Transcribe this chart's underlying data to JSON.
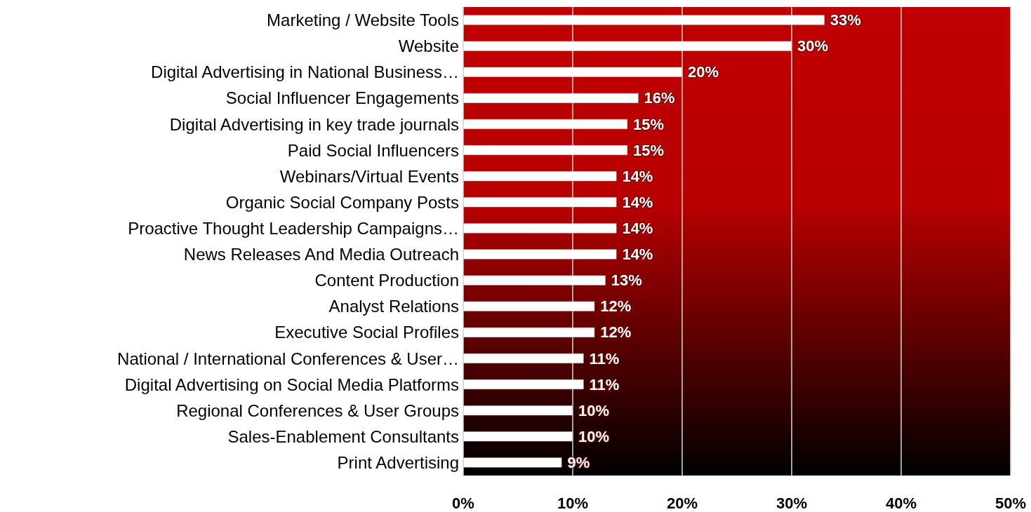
{
  "chart_data": {
    "type": "bar",
    "orientation": "horizontal",
    "categories": [
      "Marketing / Website Tools",
      "Website",
      "Digital Advertising in National Business…",
      "Social Influencer Engagements",
      "Digital Advertising in key trade journals",
      "Paid Social Influencers",
      "Webinars/Virtual Events",
      "Organic Social Company Posts",
      "Proactive Thought Leadership Campaigns…",
      "News Releases And Media Outreach",
      "Content Production",
      "Analyst Relations",
      "Executive Social Profiles",
      "National / International Conferences & User…",
      "Digital Advertising on Social Media Platforms",
      "Regional Conferences & User Groups",
      "Sales-Enablement Consultants",
      "Print Advertising"
    ],
    "values": [
      33,
      30,
      20,
      16,
      15,
      15,
      14,
      14,
      14,
      14,
      13,
      12,
      12,
      11,
      11,
      10,
      10,
      9
    ],
    "value_labels": [
      "33%",
      "30%",
      "20%",
      "16%",
      "15%",
      "15%",
      "14%",
      "14%",
      "14%",
      "14%",
      "13%",
      "12%",
      "12%",
      "11%",
      "11%",
      "10%",
      "10%",
      "9%"
    ],
    "color": "#ffffff",
    "xlim": [
      0,
      50
    ],
    "xticks": [
      {
        "value": 0,
        "label": "0%"
      },
      {
        "value": 10,
        "label": "10%"
      },
      {
        "value": 20,
        "label": "20%"
      },
      {
        "value": 30,
        "label": "30%"
      },
      {
        "value": 40,
        "label": "40%"
      },
      {
        "value": 50,
        "label": "50%"
      }
    ],
    "grid": "x"
  }
}
